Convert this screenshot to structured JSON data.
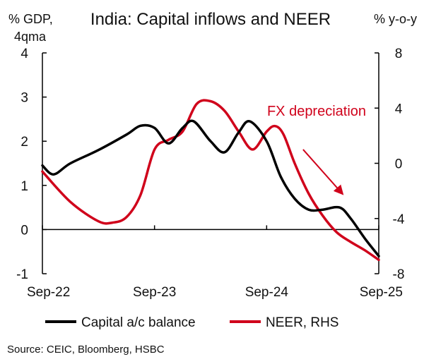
{
  "chart_data": {
    "type": "line",
    "title": "India: Capital inflows and NEER",
    "left_axis_label": [
      "% GDP,",
      "4qma"
    ],
    "right_axis_label": "% y-o-y",
    "left_ylim": [
      -1,
      4
    ],
    "left_yticks": [
      -1,
      0,
      1,
      2,
      3,
      4
    ],
    "right_ylim": [
      -8,
      8
    ],
    "right_yticks": [
      -8,
      -4,
      0,
      4,
      8
    ],
    "xlim": [
      "Sep-22",
      "Sep-25"
    ],
    "x_tick_labels": [
      "Sep-22",
      "Sep-23",
      "Sep-24",
      "Sep-25"
    ],
    "x_ticks_t": [
      0,
      4,
      8,
      12
    ],
    "grid": false,
    "legend_placement": "bottom",
    "series": [
      {
        "name": "Capital a/c balance",
        "axis": "left",
        "color": "#000000",
        "points": [
          [
            0,
            1.45
          ],
          [
            0.4,
            1.25
          ],
          [
            1.0,
            1.5
          ],
          [
            2.0,
            1.8
          ],
          [
            3.0,
            2.15
          ],
          [
            3.5,
            2.35
          ],
          [
            4.0,
            2.3
          ],
          [
            4.5,
            1.95
          ],
          [
            5.0,
            2.3
          ],
          [
            5.4,
            2.45
          ],
          [
            6.0,
            2.0
          ],
          [
            6.5,
            1.75
          ],
          [
            7.0,
            2.2
          ],
          [
            7.4,
            2.45
          ],
          [
            8.0,
            2.0
          ],
          [
            8.5,
            1.2
          ],
          [
            9.0,
            0.7
          ],
          [
            9.5,
            0.45
          ],
          [
            10.0,
            0.45
          ],
          [
            10.6,
            0.5
          ],
          [
            11.0,
            0.25
          ],
          [
            11.5,
            -0.2
          ],
          [
            12.0,
            -0.6
          ]
        ]
      },
      {
        "name": "NEER, RHS",
        "axis": "right",
        "color": "#d0021b",
        "points": [
          [
            0,
            -0.6
          ],
          [
            1.0,
            -2.8
          ],
          [
            2.0,
            -4.2
          ],
          [
            2.5,
            -4.3
          ],
          [
            3.0,
            -3.9
          ],
          [
            3.5,
            -2.3
          ],
          [
            4.0,
            1.0
          ],
          [
            4.5,
            1.7
          ],
          [
            5.0,
            2.3
          ],
          [
            5.5,
            4.3
          ],
          [
            6.0,
            4.5
          ],
          [
            6.5,
            3.8
          ],
          [
            7.0,
            2.3
          ],
          [
            7.5,
            1.0
          ],
          [
            8.0,
            2.3
          ],
          [
            8.3,
            2.7
          ],
          [
            8.6,
            2.1
          ],
          [
            9.0,
            0.0
          ],
          [
            9.5,
            -2.2
          ],
          [
            10.0,
            -3.8
          ],
          [
            10.5,
            -5.0
          ],
          [
            11.0,
            -5.7
          ],
          [
            11.5,
            -6.3
          ],
          [
            12.0,
            -7.0
          ]
        ]
      }
    ],
    "annotations": [
      {
        "text": "FX depreciation",
        "color": "#d0021b",
        "arrow": true,
        "arrow_from": [
          9.3,
          1.0
        ],
        "arrow_to": [
          10.7,
          -2.2
        ],
        "arrow_axis": "right"
      }
    ],
    "source": "Source: CEIC, Bloomberg, HSBC"
  }
}
